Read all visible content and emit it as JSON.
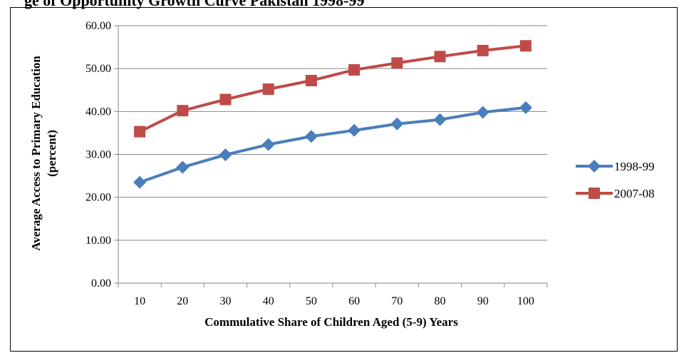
{
  "chart_data": {
    "type": "line",
    "title": "ge of Opportunity Growth Curve Pakistan 1998-99",
    "xlabel": "Commulative Share of Children Aged (5-9) Years",
    "ylabel": "Average Access to Primary Education (percent)",
    "ylabel_lines": [
      "Average Access to Primary Education",
      "(percent)"
    ],
    "categories": [
      "10",
      "20",
      "30",
      "40",
      "50",
      "60",
      "70",
      "80",
      "90",
      "100"
    ],
    "ylim": [
      0,
      60
    ],
    "yticks": [
      "0.00",
      "10.00",
      "20.00",
      "30.00",
      "40.00",
      "50.00",
      "60.00"
    ],
    "grid": true,
    "legend_position": "right",
    "series": [
      {
        "name": "1998-99",
        "color": "#4a7ebb",
        "marker": "diamond",
        "values": [
          23.5,
          27.0,
          29.9,
          32.3,
          34.2,
          35.6,
          37.1,
          38.1,
          39.8,
          40.9
        ]
      },
      {
        "name": "2007-08",
        "color": "#be4b48",
        "marker": "square",
        "values": [
          35.3,
          40.2,
          42.8,
          45.2,
          47.2,
          49.7,
          51.3,
          52.8,
          54.2,
          55.3
        ]
      }
    ]
  }
}
